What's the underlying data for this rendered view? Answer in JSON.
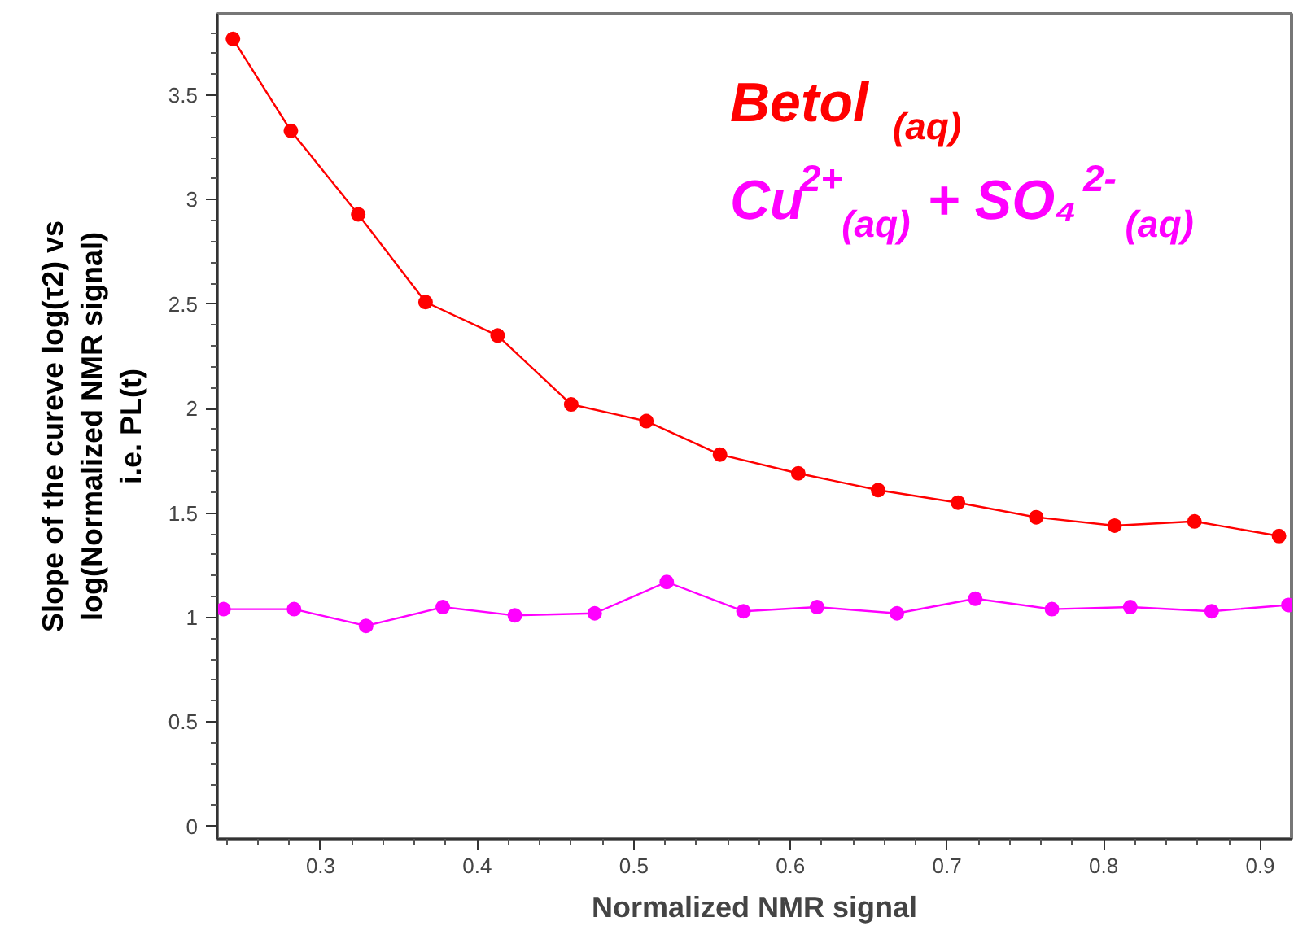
{
  "chart_data": {
    "type": "line",
    "xlabel": "Normalized NMR signal",
    "ylabel": "Slope of the cureve log(τ2) vs\nlog(Normalized NMR signal)\ni.e. PL(t)",
    "xlim": [
      0.234,
      0.92
    ],
    "xticks": [
      0.3,
      0.4,
      0.5,
      0.6,
      0.7,
      0.8,
      0.9
    ],
    "ylim": [
      -0.06,
      3.89
    ],
    "yticks": [
      0,
      0.5,
      1,
      1.5,
      2,
      2.5,
      3,
      3.5
    ],
    "grid": false,
    "marker": "circle",
    "line_style": "solid",
    "legend": "top right",
    "series": [
      {
        "name": "Betol$_{(aq)}$",
        "color": "#ff0000",
        "x": [
          0.244,
          0.281,
          0.324,
          0.367,
          0.413,
          0.46,
          0.508,
          0.555,
          0.605,
          0.656,
          0.707,
          0.757,
          0.807,
          0.858,
          0.912
        ],
        "values": [
          3.77,
          3.33,
          2.93,
          2.51,
          2.35,
          2.02,
          1.94,
          1.78,
          1.69,
          1.61,
          1.55,
          1.48,
          1.44,
          1.46,
          1.39
        ]
      },
      {
        "name": "Cu$^{2+}$$_{(aq)}$ + SO₄$^{2-}$$_{(aq)}$",
        "color": "#ff00ff",
        "x": [
          0.238,
          0.283,
          0.329,
          0.378,
          0.424,
          0.475,
          0.521,
          0.57,
          0.617,
          0.668,
          0.718,
          0.767,
          0.817,
          0.869,
          0.918
        ],
        "values": [
          1.04,
          1.04,
          0.96,
          1.05,
          1.01,
          1.02,
          1.17,
          1.03,
          1.05,
          1.02,
          1.09,
          1.04,
          1.05,
          1.03,
          1.06
        ]
      }
    ]
  }
}
